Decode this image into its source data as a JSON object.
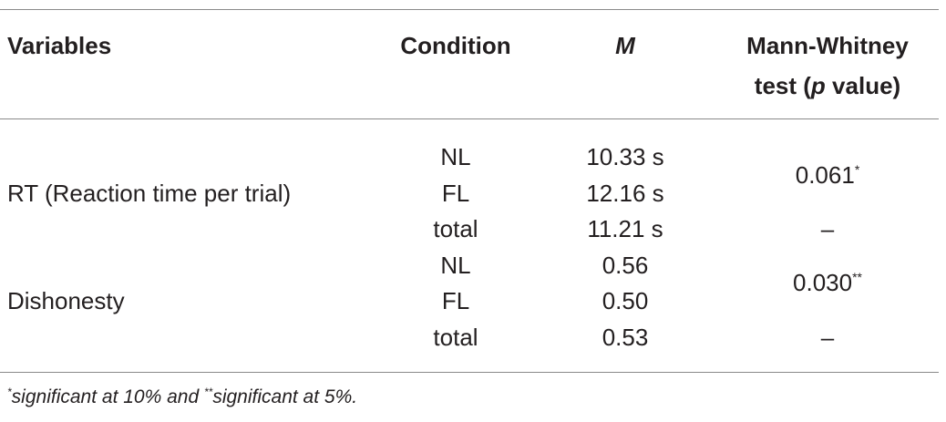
{
  "table": {
    "header": {
      "variables": "Variables",
      "condition": "Condition",
      "mean": "M",
      "test_line1": "Mann-Whitney",
      "test_line2_pre": "test (",
      "test_line2_italic": "p",
      "test_line2_post": " value)"
    },
    "groups": [
      {
        "variable": "RT (Reaction time per trial)",
        "rows": [
          {
            "condition": "NL",
            "mean": "10.33 s"
          },
          {
            "condition": "FL",
            "mean": "12.16 s"
          },
          {
            "condition": "total",
            "mean": "11.21 s"
          }
        ],
        "test": "0.061",
        "test_mark": "*",
        "total_test": "–"
      },
      {
        "variable": "Dishonesty",
        "rows": [
          {
            "condition": "NL",
            "mean": "0.56"
          },
          {
            "condition": "FL",
            "mean": "0.50"
          },
          {
            "condition": "total",
            "mean": "0.53"
          }
        ],
        "test": "0.030",
        "test_mark": "**",
        "total_test": "–"
      }
    ],
    "footnote": {
      "mark1": "*",
      "text1": "significant at 10% and ",
      "mark2": "**",
      "text2": "significant at 5%."
    }
  }
}
